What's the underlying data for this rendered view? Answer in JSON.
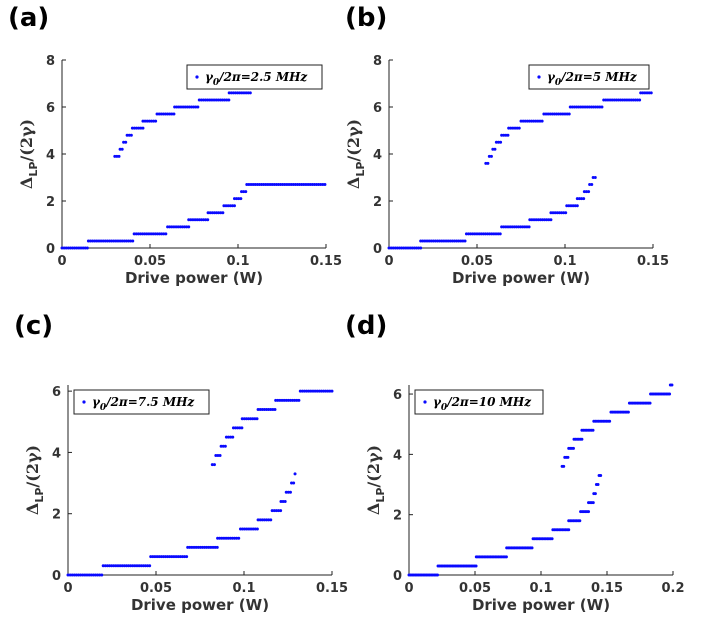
{
  "chart_data": [
    {
      "type": "scatter",
      "panel_label": "(a)",
      "xlabel": "Drive power (W)",
      "ylabel": {
        "main": "Δ",
        "sub": "LP",
        "rest": "/(2γ)"
      },
      "xlim": [
        0,
        0.15
      ],
      "ylim": [
        0,
        8
      ],
      "xticks": [
        0,
        0.05,
        0.1,
        0.15
      ],
      "xtick_labels": [
        "0",
        "0.05",
        "0.1",
        "0.15"
      ],
      "yticks": [
        0,
        2,
        4,
        6,
        8
      ],
      "ytick_labels": [
        "0",
        "2",
        "4",
        "6",
        "8"
      ],
      "legend": {
        "prefix": "γ",
        "sub": "0",
        "rest": "/2π=2.5 MHz",
        "position": "top-right"
      },
      "color": "#0a0aff",
      "series": [
        {
          "x_range": [
            0.03,
            0.108
          ],
          "steps": [
            [
              0.03,
              3.9
            ],
            [
              0.033,
              4.2
            ],
            [
              0.035,
              4.5
            ],
            [
              0.037,
              4.8
            ],
            [
              0.04,
              5.1
            ],
            [
              0.046,
              5.4
            ],
            [
              0.054,
              5.7
            ],
            [
              0.064,
              6.0
            ],
            [
              0.078,
              6.3
            ],
            [
              0.095,
              6.6
            ]
          ]
        },
        {
          "x_range": [
            0,
            0.15
          ],
          "steps": [
            [
              0,
              0
            ],
            [
              0.015,
              0.3
            ],
            [
              0.041,
              0.6
            ],
            [
              0.06,
              0.9
            ],
            [
              0.072,
              1.2
            ],
            [
              0.083,
              1.5
            ],
            [
              0.092,
              1.8
            ],
            [
              0.098,
              2.1
            ],
            [
              0.102,
              2.4
            ],
            [
              0.105,
              2.7
            ]
          ]
        }
      ]
    },
    {
      "type": "scatter",
      "panel_label": "(b)",
      "xlabel": "Drive power (W)",
      "ylabel": {
        "main": "Δ",
        "sub": "LP",
        "rest": "/(2γ)"
      },
      "xlim": [
        0,
        0.15
      ],
      "ylim": [
        0,
        8
      ],
      "xticks": [
        0,
        0.05,
        0.1,
        0.15
      ],
      "xtick_labels": [
        "0",
        "0.05",
        "0.1",
        "0.15"
      ],
      "yticks": [
        0,
        2,
        4,
        6,
        8
      ],
      "ytick_labels": [
        "0",
        "2",
        "4",
        "6",
        "8"
      ],
      "legend": {
        "prefix": "γ",
        "sub": "0",
        "rest": "/2π=5 MHz",
        "position": "top-right"
      },
      "color": "#0a0aff",
      "series": [
        {
          "x_range": [
            0.055,
            0.15
          ],
          "steps": [
            [
              0.055,
              3.6
            ],
            [
              0.057,
              3.9
            ],
            [
              0.059,
              4.2
            ],
            [
              0.061,
              4.5
            ],
            [
              0.064,
              4.8
            ],
            [
              0.068,
              5.1
            ],
            [
              0.075,
              5.4
            ],
            [
              0.088,
              5.7
            ],
            [
              0.103,
              6.0
            ],
            [
              0.122,
              6.3
            ],
            [
              0.143,
              6.6
            ]
          ]
        },
        {
          "x_range": [
            0,
            0.118
          ],
          "steps": [
            [
              0,
              0
            ],
            [
              0.018,
              0.3
            ],
            [
              0.044,
              0.6
            ],
            [
              0.064,
              0.9
            ],
            [
              0.08,
              1.2
            ],
            [
              0.092,
              1.5
            ],
            [
              0.101,
              1.8
            ],
            [
              0.107,
              2.1
            ],
            [
              0.111,
              2.4
            ],
            [
              0.114,
              2.7
            ],
            [
              0.116,
              3.0
            ]
          ]
        }
      ]
    },
    {
      "type": "scatter",
      "panel_label": "(c)",
      "xlabel": "Drive power (W)",
      "ylabel": {
        "main": "Δ",
        "sub": "LP",
        "rest": "/(2γ)"
      },
      "xlim": [
        0,
        0.15
      ],
      "ylim": [
        0,
        6.2
      ],
      "xticks": [
        0,
        0.05,
        0.1,
        0.15
      ],
      "xtick_labels": [
        "0",
        "0.05",
        "0.1",
        "0.15"
      ],
      "yticks": [
        0,
        2,
        4,
        6
      ],
      "ytick_labels": [
        "0",
        "2",
        "4",
        "6"
      ],
      "legend": {
        "prefix": "γ",
        "sub": "0",
        "rest": "/2π=7.5 MHz",
        "position": "top-left"
      },
      "color": "#0a0aff",
      "series": [
        {
          "x_range": [
            0.082,
            0.15
          ],
          "steps": [
            [
              0.082,
              3.6
            ],
            [
              0.084,
              3.9
            ],
            [
              0.087,
              4.2
            ],
            [
              0.09,
              4.5
            ],
            [
              0.094,
              4.8
            ],
            [
              0.099,
              5.1
            ],
            [
              0.108,
              5.4
            ],
            [
              0.118,
              5.7
            ],
            [
              0.132,
              6.0
            ]
          ]
        },
        {
          "x_range": [
            0,
            0.13
          ],
          "steps": [
            [
              0,
              0
            ],
            [
              0.02,
              0.3
            ],
            [
              0.047,
              0.6
            ],
            [
              0.068,
              0.9
            ],
            [
              0.085,
              1.2
            ],
            [
              0.098,
              1.5
            ],
            [
              0.108,
              1.8
            ],
            [
              0.116,
              2.1
            ],
            [
              0.121,
              2.4
            ],
            [
              0.124,
              2.7
            ],
            [
              0.127,
              3.0
            ],
            [
              0.129,
              3.3
            ]
          ]
        }
      ]
    },
    {
      "type": "scatter",
      "panel_label": "(d)",
      "xlabel": "Drive power (W)",
      "ylabel": {
        "main": "Δ",
        "sub": "LP",
        "rest": "/(2γ)"
      },
      "xlim": [
        0,
        0.2
      ],
      "ylim": [
        0,
        6.3
      ],
      "xticks": [
        0,
        0.05,
        0.1,
        0.15,
        0.2
      ],
      "xtick_labels": [
        "0",
        "0.05",
        "0.1",
        "0.15",
        "0.2"
      ],
      "yticks": [
        0,
        2,
        4,
        6
      ],
      "ytick_labels": [
        "0",
        "2",
        "4",
        "6"
      ],
      "legend": {
        "prefix": "γ",
        "sub": "0",
        "rest": "/2π=10 MHz",
        "position": "top-left"
      },
      "color": "#0a0aff",
      "series": [
        {
          "x_range": [
            0.116,
            0.2
          ],
          "steps": [
            [
              0.116,
              3.6
            ],
            [
              0.118,
              3.9
            ],
            [
              0.121,
              4.2
            ],
            [
              0.125,
              4.5
            ],
            [
              0.131,
              4.8
            ],
            [
              0.14,
              5.1
            ],
            [
              0.153,
              5.4
            ],
            [
              0.167,
              5.7
            ],
            [
              0.183,
              6.0
            ],
            [
              0.198,
              6.3
            ]
          ]
        },
        {
          "x_range": [
            0,
            0.146
          ],
          "steps": [
            [
              0,
              0
            ],
            [
              0.022,
              0.3
            ],
            [
              0.051,
              0.6
            ],
            [
              0.074,
              0.9
            ],
            [
              0.094,
              1.2
            ],
            [
              0.109,
              1.5
            ],
            [
              0.121,
              1.8
            ],
            [
              0.13,
              2.1
            ],
            [
              0.136,
              2.4
            ],
            [
              0.14,
              2.7
            ],
            [
              0.142,
              3.0
            ],
            [
              0.144,
              3.3
            ]
          ]
        }
      ]
    }
  ]
}
